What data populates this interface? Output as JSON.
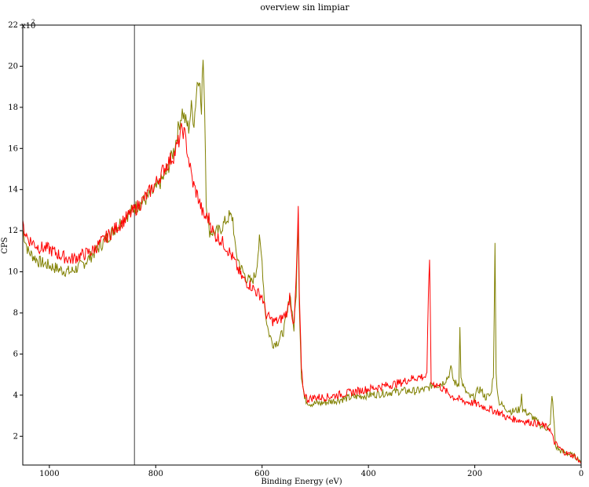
{
  "chart_data": {
    "type": "line",
    "title": "overview sin limpiar",
    "xlabel": "Binding Energy (eV)",
    "ylabel": "CPS",
    "y_multiplier_text": "x10",
    "y_multiplier_exp": "2",
    "x_reversed": true,
    "xlim": [
      1050,
      0
    ],
    "ylim": [
      0.6,
      22
    ],
    "x_ticks": [
      1000,
      800,
      600,
      400,
      200,
      0
    ],
    "y_ticks": [
      2,
      4,
      6,
      8,
      10,
      12,
      14,
      16,
      18,
      20,
      22
    ],
    "grid": false,
    "vline_x": 840,
    "series": [
      {
        "color": "#ff0000",
        "points": [
          [
            1050,
            12.2
          ],
          [
            1040,
            11.6
          ],
          [
            1020,
            11.2
          ],
          [
            1000,
            11.1
          ],
          [
            980,
            10.8
          ],
          [
            960,
            10.6
          ],
          [
            940,
            10.8
          ],
          [
            920,
            11.0
          ],
          [
            900,
            11.5
          ],
          [
            880,
            12.0
          ],
          [
            860,
            12.5
          ],
          [
            840,
            13.0
          ],
          [
            820,
            13.6
          ],
          [
            800,
            14.3
          ],
          [
            780,
            15.2
          ],
          [
            765,
            15.7
          ],
          [
            755,
            16.5
          ],
          [
            750,
            17.0
          ],
          [
            745,
            16.6
          ],
          [
            740,
            15.8
          ],
          [
            735,
            15.0
          ],
          [
            730,
            14.3
          ],
          [
            720,
            13.6
          ],
          [
            710,
            12.7
          ],
          [
            700,
            12.6
          ],
          [
            690,
            11.8
          ],
          [
            680,
            11.6
          ],
          [
            670,
            11.3
          ],
          [
            660,
            10.9
          ],
          [
            650,
            10.4
          ],
          [
            640,
            9.8
          ],
          [
            630,
            9.5
          ],
          [
            620,
            9.3
          ],
          [
            610,
            9.0
          ],
          [
            600,
            8.8
          ],
          [
            592,
            7.9
          ],
          [
            580,
            7.6
          ],
          [
            570,
            7.6
          ],
          [
            560,
            7.8
          ],
          [
            552,
            8.1
          ],
          [
            548,
            8.9
          ],
          [
            545,
            8.2
          ],
          [
            540,
            7.3
          ],
          [
            536,
            9.6
          ],
          [
            532,
            12.9
          ],
          [
            530,
            9.0
          ],
          [
            526,
            5.2
          ],
          [
            522,
            4.2
          ],
          [
            515,
            3.8
          ],
          [
            500,
            3.9
          ],
          [
            480,
            3.9
          ],
          [
            460,
            4.0
          ],
          [
            440,
            4.1
          ],
          [
            420,
            4.2
          ],
          [
            400,
            4.3
          ],
          [
            380,
            4.4
          ],
          [
            360,
            4.5
          ],
          [
            340,
            4.6
          ],
          [
            320,
            4.8
          ],
          [
            300,
            4.9
          ],
          [
            290,
            4.9
          ],
          [
            287,
            9.3
          ],
          [
            285,
            10.8
          ],
          [
            282,
            4.6
          ],
          [
            270,
            4.5
          ],
          [
            260,
            4.3
          ],
          [
            250,
            4.1
          ],
          [
            240,
            3.9
          ],
          [
            220,
            3.7
          ],
          [
            200,
            3.6
          ],
          [
            180,
            3.4
          ],
          [
            160,
            3.2
          ],
          [
            150,
            3.1
          ],
          [
            140,
            2.9
          ],
          [
            120,
            2.8
          ],
          [
            100,
            2.7
          ],
          [
            80,
            2.6
          ],
          [
            60,
            2.4
          ],
          [
            50,
            1.7
          ],
          [
            40,
            1.4
          ],
          [
            30,
            1.2
          ],
          [
            20,
            1.1
          ],
          [
            10,
            1.0
          ],
          [
            5,
            0.8
          ],
          [
            0,
            0.7
          ]
        ]
      },
      {
        "color": "#808000",
        "points": [
          [
            1050,
            12.0
          ],
          [
            1040,
            11.0
          ],
          [
            1020,
            10.5
          ],
          [
            1000,
            10.3
          ],
          [
            980,
            10.1
          ],
          [
            960,
            10.0
          ],
          [
            940,
            10.3
          ],
          [
            920,
            10.8
          ],
          [
            900,
            11.4
          ],
          [
            880,
            12.0
          ],
          [
            860,
            12.6
          ],
          [
            840,
            13.1
          ],
          [
            820,
            13.5
          ],
          [
            800,
            14.0
          ],
          [
            780,
            14.8
          ],
          [
            765,
            16.0
          ],
          [
            755,
            17.3
          ],
          [
            750,
            17.8
          ],
          [
            745,
            17.4
          ],
          [
            738,
            17.0
          ],
          [
            733,
            18.0
          ],
          [
            728,
            17.3
          ],
          [
            722,
            19.2
          ],
          [
            718,
            19.6
          ],
          [
            714,
            17.6
          ],
          [
            711,
            20.7
          ],
          [
            708,
            18.0
          ],
          [
            705,
            13.5
          ],
          [
            700,
            12.0
          ],
          [
            690,
            11.9
          ],
          [
            680,
            12.0
          ],
          [
            670,
            12.4
          ],
          [
            662,
            12.7
          ],
          [
            655,
            12.6
          ],
          [
            650,
            11.0
          ],
          [
            640,
            10.2
          ],
          [
            630,
            9.7
          ],
          [
            620,
            9.5
          ],
          [
            612,
            9.9
          ],
          [
            605,
            11.5
          ],
          [
            600,
            10.5
          ],
          [
            594,
            8.0
          ],
          [
            588,
            7.1
          ],
          [
            580,
            6.5
          ],
          [
            570,
            6.6
          ],
          [
            560,
            7.1
          ],
          [
            552,
            8.0
          ],
          [
            548,
            9.0
          ],
          [
            545,
            8.4
          ],
          [
            540,
            7.2
          ],
          [
            536,
            9.0
          ],
          [
            532,
            12.5
          ],
          [
            530,
            8.5
          ],
          [
            526,
            5.0
          ],
          [
            520,
            3.8
          ],
          [
            510,
            3.6
          ],
          [
            490,
            3.6
          ],
          [
            470,
            3.7
          ],
          [
            450,
            3.8
          ],
          [
            430,
            3.9
          ],
          [
            400,
            4.0
          ],
          [
            370,
            4.1
          ],
          [
            340,
            4.2
          ],
          [
            310,
            4.2
          ],
          [
            290,
            4.3
          ],
          [
            280,
            4.5
          ],
          [
            270,
            4.5
          ],
          [
            260,
            4.6
          ],
          [
            250,
            4.9
          ],
          [
            245,
            5.3
          ],
          [
            240,
            4.7
          ],
          [
            233,
            4.5
          ],
          [
            230,
            4.6
          ],
          [
            228,
            7.5
          ],
          [
            226,
            4.8
          ],
          [
            220,
            4.3
          ],
          [
            210,
            3.9
          ],
          [
            200,
            3.9
          ],
          [
            195,
            4.2
          ],
          [
            190,
            4.3
          ],
          [
            180,
            3.9
          ],
          [
            170,
            4.0
          ],
          [
            165,
            5.0
          ],
          [
            162,
            11.2
          ],
          [
            160,
            5.0
          ],
          [
            155,
            3.7
          ],
          [
            145,
            3.4
          ],
          [
            130,
            3.2
          ],
          [
            115,
            3.3
          ],
          [
            112,
            4.1
          ],
          [
            110,
            3.3
          ],
          [
            100,
            3.1
          ],
          [
            90,
            2.9
          ],
          [
            75,
            2.5
          ],
          [
            65,
            2.4
          ],
          [
            58,
            2.5
          ],
          [
            55,
            4.1
          ],
          [
            52,
            3.0
          ],
          [
            48,
            1.5
          ],
          [
            40,
            1.3
          ],
          [
            30,
            1.2
          ],
          [
            20,
            1.1
          ],
          [
            10,
            1.0
          ],
          [
            5,
            0.9
          ],
          [
            0,
            0.8
          ]
        ]
      }
    ]
  }
}
